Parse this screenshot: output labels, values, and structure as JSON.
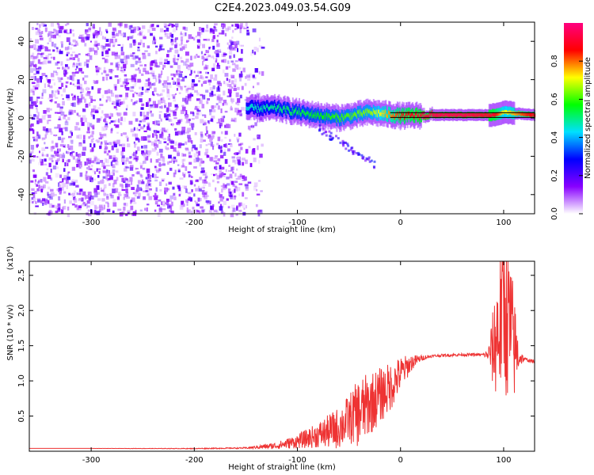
{
  "title": "C2E4.2023.049.03.54.G09",
  "chart_data": [
    {
      "type": "heatmap",
      "title": "C2E4.2023.049.03.54.G09",
      "xlabel": "Height of straight line (km)",
      "ylabel": "Frequency (Hz)",
      "xlim": [
        -360,
        130
      ],
      "ylim": [
        -50,
        50
      ],
      "xticks": [
        -300,
        -200,
        -100,
        0,
        100
      ],
      "yticks": [
        -40,
        -20,
        0,
        20,
        40
      ],
      "colorbar": {
        "label": "Normalized spectral amplitude",
        "range": [
          0,
          1
        ],
        "ticks": [
          "0.0",
          "0.2",
          "0.4",
          "0.6",
          "0.8"
        ],
        "colormap": [
          "#ffffff",
          "#8800ff",
          "#0000ff",
          "#00e0ff",
          "#00ff00",
          "#ffff00",
          "#ff0000",
          "#ff0080"
        ]
      },
      "noise_region": {
        "x_from": -360,
        "x_to": -135,
        "amplitude": 0.15
      },
      "signal_band": [
        {
          "x": -150,
          "freq": 5,
          "amplitude": 0.45
        },
        {
          "x": -120,
          "freq": 5,
          "amplitude": 0.5
        },
        {
          "x": -90,
          "freq": 2,
          "amplitude": 0.55
        },
        {
          "x": -60,
          "freq": 0,
          "amplitude": 0.6
        },
        {
          "x": -30,
          "freq": 3,
          "amplitude": 0.65
        },
        {
          "x": 0,
          "freq": 1,
          "amplitude": 0.85
        },
        {
          "x": 30,
          "freq": 1.5,
          "amplitude": 0.95
        },
        {
          "x": 60,
          "freq": 1.5,
          "amplitude": 0.95
        },
        {
          "x": 90,
          "freq": 1.5,
          "amplitude": 0.9
        },
        {
          "x": 100,
          "freq": 3,
          "amplitude": 0.7
        },
        {
          "x": 130,
          "freq": 1.5,
          "amplitude": 0.9
        }
      ],
      "grid": false,
      "legend": "none"
    },
    {
      "type": "line",
      "xlabel": "Height of straight line (km)",
      "ylabel": "SNR (10 * v/v)",
      "multiplier": "(x10⁴)",
      "xlim": [
        -360,
        130
      ],
      "ylim": [
        0,
        2.7
      ],
      "xticks": [
        -300,
        -200,
        -100,
        0,
        100
      ],
      "yticks": [
        "0.5",
        "1.0",
        "1.5",
        "2.0",
        "2.5"
      ],
      "color": "#ee3333",
      "grid": false,
      "legend": "none",
      "series": [
        {
          "x": [
            -360,
            -300,
            -200,
            -150,
            -120,
            -100,
            -80,
            -60,
            -50,
            -40,
            -30,
            -20,
            -10,
            0,
            10,
            20,
            30,
            40,
            60,
            80,
            85,
            90,
            95,
            100,
            105,
            110,
            115,
            120,
            130
          ],
          "values": [
            0.04,
            0.04,
            0.04,
            0.05,
            0.1,
            0.18,
            0.3,
            0.45,
            0.6,
            0.75,
            0.85,
            0.95,
            1.05,
            1.2,
            1.3,
            1.34,
            1.36,
            1.37,
            1.38,
            1.38,
            1.4,
            1.7,
            2.2,
            2.7,
            2.3,
            1.8,
            1.4,
            1.32,
            1.28
          ],
          "noise": [
            0,
            0,
            0.005,
            0.01,
            0.05,
            0.1,
            0.18,
            0.3,
            0.35,
            0.5,
            0.45,
            0.4,
            0.35,
            0.25,
            0.12,
            0.04,
            0.02,
            0.02,
            0.02,
            0.02,
            0.08,
            0.6,
            1.1,
            1.3,
            1.2,
            0.8,
            0.15,
            0.03,
            0.02
          ]
        }
      ]
    }
  ]
}
